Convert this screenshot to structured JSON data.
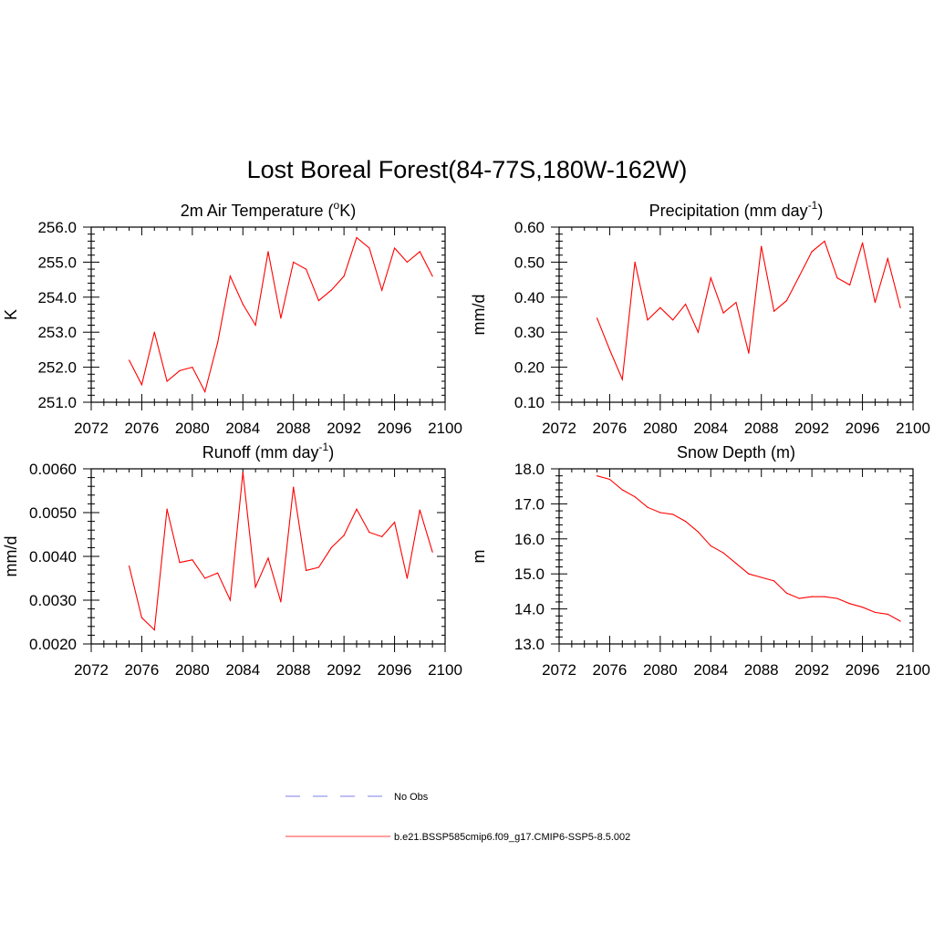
{
  "figure": {
    "title": "Lost Boreal Forest(84-77S,180W-162W)"
  },
  "legend": {
    "entries": [
      {
        "label": "No Obs",
        "color": "#9999ee",
        "dash": true
      },
      {
        "label": "b.e21.BSSP585cmip6.f09_g17.CMIP6-SSP5-8.5.002",
        "color": "#ff6666",
        "dash": false
      }
    ]
  },
  "chart_data": [
    {
      "type": "line",
      "title": "2m Air Temperature (°K)",
      "ylabel": "K",
      "xlim": [
        2072,
        2100
      ],
      "ylim": [
        251.0,
        256.0
      ],
      "xticks": [
        "2072",
        "2076",
        "2080",
        "2084",
        "2088",
        "2092",
        "2096",
        "2100"
      ],
      "yticks": [
        "251.0",
        "252.0",
        "253.0",
        "254.0",
        "255.0",
        "256.0"
      ],
      "series": [
        {
          "name": "b.e21.BSSP585cmip6.f09_g17.CMIP6-SSP5-8.5.002",
          "color": "#ff0000",
          "x": [
            2075,
            2076,
            2077,
            2078,
            2079,
            2080,
            2081,
            2082,
            2083,
            2084,
            2085,
            2086,
            2087,
            2088,
            2089,
            2090,
            2091,
            2092,
            2093,
            2094,
            2095,
            2096,
            2097,
            2098,
            2099
          ],
          "y": [
            252.2,
            251.5,
            253.0,
            251.6,
            251.9,
            252.0,
            251.3,
            252.7,
            254.6,
            253.8,
            253.2,
            255.3,
            253.4,
            255.0,
            254.8,
            253.9,
            254.2,
            254.6,
            255.7,
            255.4,
            254.2,
            255.4,
            255.0,
            255.3,
            254.6
          ]
        }
      ]
    },
    {
      "type": "line",
      "title": "Precipitation (mm day-1)",
      "ylabel": "mm/d",
      "xlim": [
        2072,
        2100
      ],
      "ylim": [
        0.1,
        0.6
      ],
      "xticks": [
        "2072",
        "2076",
        "2080",
        "2084",
        "2088",
        "2092",
        "2096",
        "2100"
      ],
      "yticks": [
        "0.10",
        "0.20",
        "0.30",
        "0.40",
        "0.50",
        "0.60"
      ],
      "series": [
        {
          "name": "b.e21.BSSP585cmip6.f09_g17.CMIP6-SSP5-8.5.002",
          "color": "#ff0000",
          "x": [
            2075,
            2076,
            2077,
            2078,
            2079,
            2080,
            2081,
            2082,
            2083,
            2084,
            2085,
            2086,
            2087,
            2088,
            2089,
            2090,
            2091,
            2092,
            2093,
            2094,
            2095,
            2096,
            2097,
            2098,
            2099
          ],
          "y": [
            0.34,
            0.25,
            0.165,
            0.5,
            0.335,
            0.37,
            0.335,
            0.38,
            0.3,
            0.455,
            0.355,
            0.385,
            0.24,
            0.545,
            0.36,
            0.39,
            0.46,
            0.53,
            0.56,
            0.455,
            0.435,
            0.555,
            0.385,
            0.51,
            0.37
          ]
        }
      ]
    },
    {
      "type": "line",
      "title": "Runoff (mm day-1)",
      "ylabel": "mm/d",
      "xlim": [
        2072,
        2100
      ],
      "ylim": [
        0.002,
        0.006
      ],
      "xticks": [
        "2072",
        "2076",
        "2080",
        "2084",
        "2088",
        "2092",
        "2096",
        "2100"
      ],
      "yticks": [
        "0.0020",
        "0.0030",
        "0.0040",
        "0.0050",
        "0.0060"
      ],
      "series": [
        {
          "name": "b.e21.BSSP585cmip6.f09_g17.CMIP6-SSP5-8.5.002",
          "color": "#ff0000",
          "x": [
            2075,
            2076,
            2077,
            2078,
            2079,
            2080,
            2081,
            2082,
            2083,
            2084,
            2085,
            2086,
            2087,
            2088,
            2089,
            2090,
            2091,
            2092,
            2093,
            2094,
            2095,
            2096,
            2097,
            2098,
            2099
          ],
          "y": [
            0.00378,
            0.0026,
            0.00232,
            0.00508,
            0.00386,
            0.00392,
            0.0035,
            0.00362,
            0.003,
            0.00592,
            0.0033,
            0.00396,
            0.00296,
            0.00558,
            0.00368,
            0.00375,
            0.0042,
            0.00448,
            0.00508,
            0.00455,
            0.00445,
            0.00478,
            0.0035,
            0.00506,
            0.0041
          ]
        }
      ]
    },
    {
      "type": "line",
      "title": "Snow Depth (m)",
      "ylabel": "m",
      "xlim": [
        2072,
        2100
      ],
      "ylim": [
        13.0,
        18.0
      ],
      "xticks": [
        "2072",
        "2076",
        "2080",
        "2084",
        "2088",
        "2092",
        "2096",
        "2100"
      ],
      "yticks": [
        "13.0",
        "14.0",
        "15.0",
        "16.0",
        "17.0",
        "18.0"
      ],
      "series": [
        {
          "name": "b.e21.BSSP585cmip6.f09_g17.CMIP6-SSP5-8.5.002",
          "color": "#ff0000",
          "x": [
            2075,
            2076,
            2077,
            2078,
            2079,
            2080,
            2081,
            2082,
            2083,
            2084,
            2085,
            2086,
            2087,
            2088,
            2089,
            2090,
            2091,
            2092,
            2093,
            2094,
            2095,
            2096,
            2097,
            2098,
            2099
          ],
          "y": [
            17.8,
            17.7,
            17.4,
            17.2,
            16.9,
            16.75,
            16.7,
            16.5,
            16.2,
            15.8,
            15.6,
            15.3,
            15.0,
            14.9,
            14.8,
            14.45,
            14.3,
            14.35,
            14.35,
            14.3,
            14.15,
            14.05,
            13.9,
            13.85,
            13.65
          ]
        }
      ]
    }
  ]
}
